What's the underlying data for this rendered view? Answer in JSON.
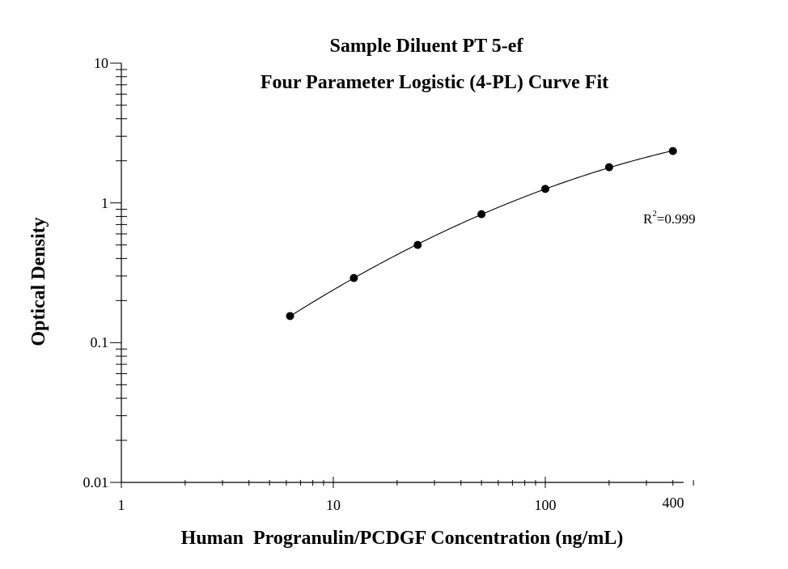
{
  "chart_data": {
    "type": "scatter",
    "title": "Sample Diluent PT 5-ef",
    "subtitle": "Four Parameter Logistic (4-PL) Curve Fit",
    "xlabel": "Human  Progranulin/PCDGF Concentration (ng/mL)",
    "ylabel": "Optical Density",
    "x_scale": "log",
    "y_scale": "log",
    "xlim": [
      1,
      500
    ],
    "ylim": [
      0.01,
      10
    ],
    "x_ticks": [
      "1",
      "10",
      "100",
      "400"
    ],
    "y_ticks": [
      "0.01",
      "0.1",
      "1",
      "10"
    ],
    "series": [
      {
        "x": [
          6.25,
          12.5,
          25,
          50,
          100,
          200,
          400
        ],
        "y": [
          0.155,
          0.29,
          0.5,
          0.83,
          1.26,
          1.8,
          2.35
        ]
      }
    ],
    "annotation": {
      "base": "R",
      "superscript": "2",
      "rest": "=0.999"
    },
    "marker_color": "#000000",
    "line_color": "#000000",
    "grid": false
  }
}
